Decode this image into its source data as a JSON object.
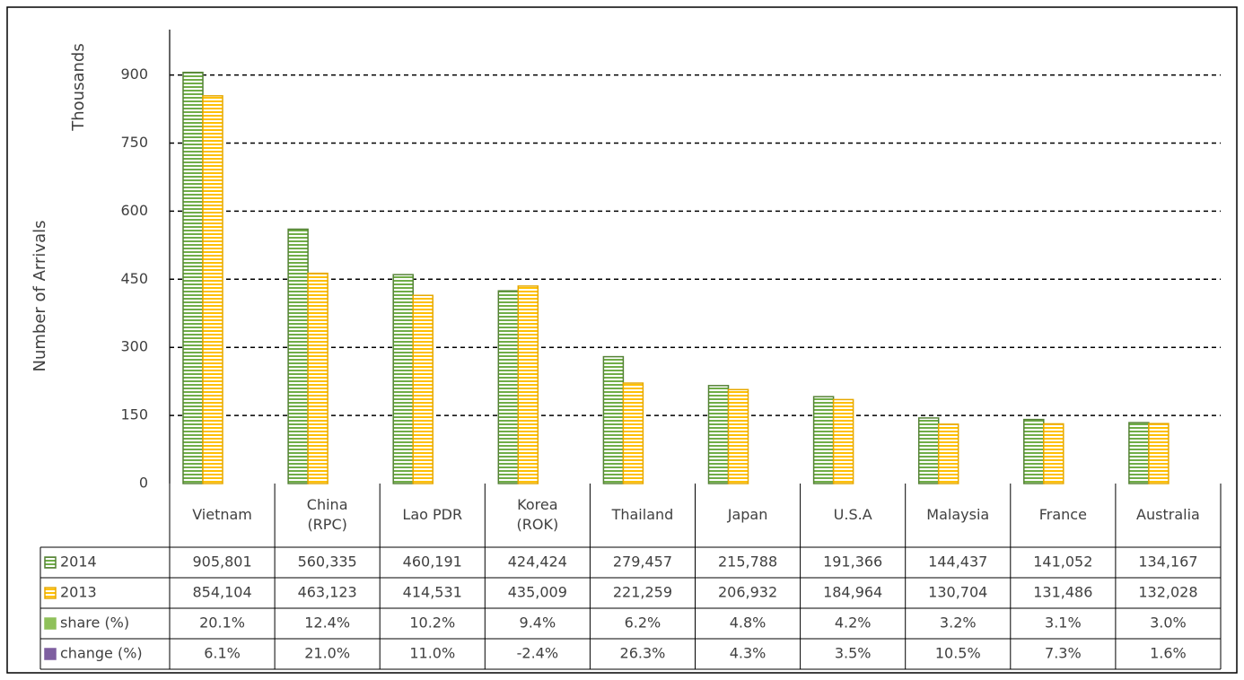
{
  "chart_data": {
    "type": "bar",
    "y_label": "Number of Arrivals",
    "y_unit_label": "Thousands",
    "categories": [
      "Vietnam",
      "China\n(RPC)",
      "Lao PDR",
      "Korea\n(ROK)",
      "Thailand",
      "Japan",
      "U.S.A",
      "Malaysia",
      "France",
      "Australia"
    ],
    "series": [
      {
        "name": "2014",
        "color": "#70ad47",
        "stroke": "#548235",
        "values": [
          905.801,
          560.335,
          460.191,
          424.424,
          279.457,
          215.788,
          191.366,
          144.437,
          141.052,
          134.167
        ],
        "value_labels": [
          "905,801",
          "560,335",
          "460,191",
          "424,424",
          "279,457",
          "215,788",
          "191,366",
          "144,437",
          "141,052",
          "134,167"
        ]
      },
      {
        "name": "2013",
        "color": "#ffc000",
        "stroke": "#e6a800",
        "values": [
          854.104,
          463.123,
          414.531,
          435.009,
          221.259,
          206.932,
          184.964,
          130.704,
          131.486,
          132.028
        ],
        "value_labels": [
          "854,104",
          "463,123",
          "414,531",
          "435,009",
          "221,259",
          "206,932",
          "184,964",
          "130,704",
          "131,486",
          "132,028"
        ]
      }
    ],
    "table_rows": [
      {
        "name": "share (%)",
        "color": "#8fc15a",
        "cells": [
          "20.1%",
          "12.4%",
          "10.2%",
          "9.4%",
          "6.2%",
          "4.8%",
          "4.2%",
          "3.2%",
          "3.1%",
          "3.0%"
        ]
      },
      {
        "name": "change (%)",
        "color": "#7e5fa0",
        "cells": [
          "6.1%",
          "21.0%",
          "11.0%",
          "-2.4%",
          "26.3%",
          "4.3%",
          "3.5%",
          "10.5%",
          "7.3%",
          "1.6%"
        ]
      }
    ],
    "ylim": [
      0,
      1000
    ],
    "yticks": [
      0,
      150,
      300,
      450,
      600,
      750,
      900
    ],
    "grid": true,
    "grid_style": "dashed"
  }
}
